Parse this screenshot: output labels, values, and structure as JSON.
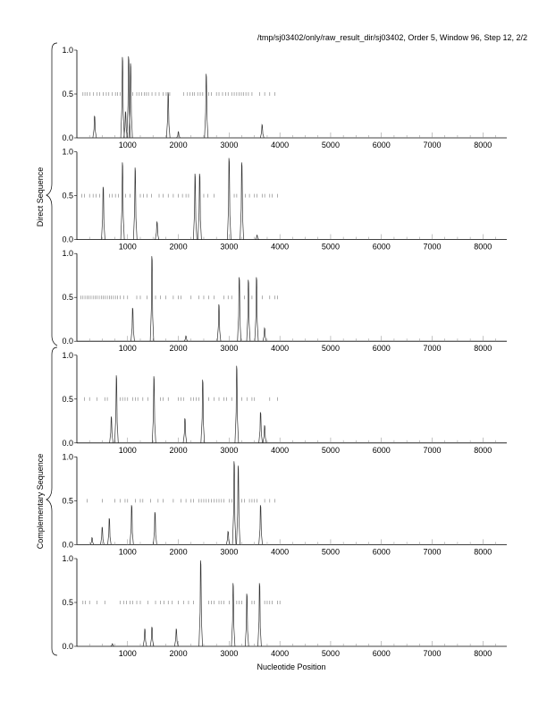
{
  "chart_data": {
    "type": "line",
    "title": "/tmp/sj03402/only/raw_result_dir/sj03402, Order 5, Window 96, Step 12, 2/2",
    "xlabel": "Nucleotide Position",
    "xlim": [
      0,
      8470
    ],
    "ylim": [
      0,
      1
    ],
    "x_ticks": [
      1000,
      2000,
      3000,
      4000,
      5000,
      6000,
      7000,
      8000
    ],
    "y_ticks": [
      "0.0",
      "0.5",
      "1.0"
    ],
    "group_labels": [
      "Direct Sequence",
      "Complementary Sequence"
    ],
    "panels": [
      {
        "name": "direct-frame-1",
        "peaks": [
          [
            350,
            0.25
          ],
          [
            900,
            0.92
          ],
          [
            960,
            0.3
          ],
          [
            1020,
            0.93
          ],
          [
            1060,
            0.85
          ],
          [
            1800,
            0.52
          ],
          [
            2000,
            0.07
          ],
          [
            2550,
            0.73
          ],
          [
            3650,
            0.15
          ]
        ],
        "orf_marks": [
          120,
          160,
          200,
          260,
          330,
          400,
          450,
          520,
          580,
          630,
          700,
          760,
          800,
          850,
          1100,
          1180,
          1230,
          1280,
          1330,
          1370,
          1410,
          1480,
          1550,
          1620,
          1700,
          1760,
          1830,
          2100,
          2180,
          2230,
          2280,
          2320,
          2380,
          2430,
          2480,
          2600,
          2650,
          2750,
          2800,
          2870,
          2930,
          2980,
          3050,
          3100,
          3150,
          3200,
          3240,
          3280,
          3330,
          3380,
          3450,
          3600,
          3700,
          3800,
          3900
        ]
      },
      {
        "name": "direct-frame-2",
        "peaks": [
          [
            520,
            0.6
          ],
          [
            900,
            0.88
          ],
          [
            1150,
            0.82
          ],
          [
            1580,
            0.2
          ],
          [
            2330,
            0.75
          ],
          [
            2420,
            0.75
          ],
          [
            3000,
            0.93
          ],
          [
            3250,
            0.88
          ],
          [
            3550,
            0.05
          ]
        ],
        "orf_marks": [
          100,
          150,
          250,
          320,
          380,
          450,
          640,
          700,
          760,
          820,
          960,
          1050,
          1250,
          1310,
          1380,
          1470,
          1620,
          1700,
          1800,
          1900,
          2000,
          2080,
          2150,
          2200,
          2500,
          2580,
          2700,
          3100,
          3150,
          3320,
          3400,
          3500,
          3550,
          3650,
          3700,
          3800,
          3850,
          3950
        ]
      },
      {
        "name": "direct-frame-3",
        "peaks": [
          [
            1100,
            0.38
          ],
          [
            1480,
            0.97
          ],
          [
            2150,
            0.06
          ],
          [
            2800,
            0.42
          ],
          [
            3200,
            0.73
          ],
          [
            3380,
            0.7
          ],
          [
            3540,
            0.73
          ],
          [
            3700,
            0.15
          ]
        ],
        "orf_marks": [
          80,
          120,
          160,
          200,
          240,
          280,
          320,
          360,
          400,
          440,
          480,
          520,
          560,
          600,
          640,
          680,
          720,
          760,
          800,
          850,
          920,
          1000,
          1180,
          1250,
          1380,
          1550,
          1650,
          1750,
          1900,
          2000,
          2050,
          2250,
          2400,
          2500,
          2600,
          2700,
          2900,
          2980,
          3050,
          3300,
          3450,
          3650,
          3800,
          3900,
          3950
        ]
      },
      {
        "name": "complementary-frame-1",
        "peaks": [
          [
            680,
            0.3
          ],
          [
            780,
            0.77
          ],
          [
            1520,
            0.76
          ],
          [
            2130,
            0.28
          ],
          [
            2480,
            0.72
          ],
          [
            3150,
            0.88
          ],
          [
            3620,
            0.35
          ],
          [
            3700,
            0.2
          ]
        ],
        "orf_marks": [
          150,
          250,
          400,
          550,
          600,
          850,
          900,
          950,
          1000,
          1100,
          1150,
          1200,
          1300,
          1400,
          1650,
          1700,
          1800,
          2000,
          2050,
          2100,
          2250,
          2300,
          2350,
          2400,
          2600,
          2700,
          2800,
          2900,
          2950,
          3050,
          3250,
          3350,
          3450,
          3500,
          3800,
          3950
        ]
      },
      {
        "name": "complementary-frame-2",
        "peaks": [
          [
            300,
            0.08
          ],
          [
            500,
            0.2
          ],
          [
            640,
            0.3
          ],
          [
            1080,
            0.45
          ],
          [
            1540,
            0.37
          ],
          [
            2980,
            0.15
          ],
          [
            3100,
            0.95
          ],
          [
            3180,
            0.9
          ],
          [
            3620,
            0.45
          ]
        ],
        "orf_marks": [
          200,
          500,
          750,
          850,
          950,
          1000,
          1150,
          1250,
          1300,
          1450,
          1600,
          1700,
          1900,
          2050,
          2150,
          2250,
          2300,
          2400,
          2450,
          2500,
          2550,
          2600,
          2650,
          2700,
          2750,
          2800,
          2850,
          2900,
          3000,
          3050,
          3250,
          3300,
          3400,
          3450,
          3500,
          3550,
          3700,
          3800,
          3900
        ]
      },
      {
        "name": "complementary-frame-3",
        "peaks": [
          [
            700,
            0.03
          ],
          [
            1340,
            0.2
          ],
          [
            1480,
            0.22
          ],
          [
            1960,
            0.2
          ],
          [
            2440,
            0.98
          ],
          [
            3080,
            0.72
          ],
          [
            3350,
            0.6
          ],
          [
            3600,
            0.72
          ]
        ],
        "orf_marks": [
          120,
          170,
          250,
          400,
          550,
          850,
          920,
          980,
          1050,
          1100,
          1180,
          1250,
          1400,
          1550,
          1650,
          1720,
          1800,
          1880,
          2000,
          2100,
          2200,
          2300,
          2600,
          2650,
          2700,
          2800,
          2850,
          2900,
          3000,
          3150,
          3200,
          3250,
          3450,
          3500,
          3700,
          3750,
          3800,
          3850,
          3950,
          4000
        ]
      }
    ]
  }
}
